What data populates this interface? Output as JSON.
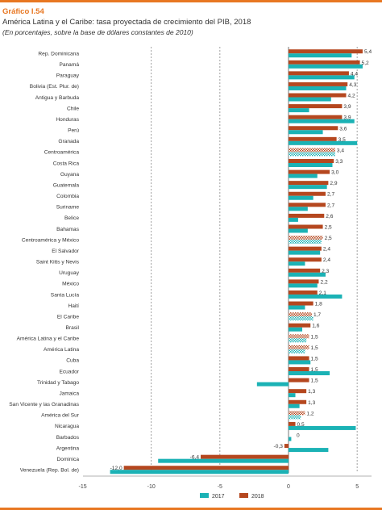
{
  "header": {
    "graph_number": "Gráfico I.54",
    "title": "América Latina y el Caribe: tasa proyectada de crecimiento del PIB, 2018",
    "subtitle": "(En porcentajes, sobre la base de dólares constantes de 2010)"
  },
  "colors": {
    "series_2017": "#1bb2b5",
    "series_2018": "#b5471f",
    "accent": "#e87722",
    "grid": "#888888"
  },
  "chart_data": {
    "type": "bar",
    "orientation": "horizontal",
    "xlim": [
      -15,
      6
    ],
    "xticks": [
      -15,
      -10,
      -5,
      0,
      5
    ],
    "grid": "dashed vertical lines at -10, -5 and 5",
    "legend_position": "bottom-center",
    "categories": [
      "Rep. Dominicana",
      "Panamá",
      "Paraguay",
      "Bolivia (Est. Plur. de)",
      "Antigua y Barbuda",
      "Chile",
      "Honduras",
      "Perú",
      "Granada",
      "Centroamérica",
      "Costa Rica",
      "Guyana",
      "Guatemala",
      "Colombia",
      "Suriname",
      "Belice",
      "Bahamas",
      "Centroamérica y México",
      "El Salvador",
      "Saint Kitts y Nevis",
      "Uruguay",
      "México",
      "Santa Lucía",
      "Haití",
      "El Caribe",
      "Brasil",
      "América Latina y el Caribe",
      "América Latina",
      "Cuba",
      "Ecuador",
      "Trinidad y Tabago",
      "Jamaica",
      "San Vicente y las Granadinas",
      "América del Sur",
      "Nicaragua",
      "Barbados",
      "Argentina",
      "Dominica",
      "Venezuela (Rep. Bol. de)"
    ],
    "aggregate_categories": [
      "Centroamérica",
      "Centroamérica y México",
      "El Caribe",
      "América Latina y el Caribe",
      "América Latina",
      "América del Sur"
    ],
    "series": [
      {
        "name": "2017",
        "values": [
          4.6,
          5.4,
          4.8,
          4.2,
          3.1,
          1.5,
          4.8,
          2.5,
          5.0,
          3.4,
          3.2,
          2.1,
          2.8,
          1.8,
          1.4,
          0.7,
          1.4,
          2.4,
          2.3,
          1.2,
          2.7,
          2.1,
          3.9,
          1.2,
          1.8,
          1.0,
          1.3,
          1.2,
          1.6,
          3.0,
          -2.3,
          0.5,
          0.8,
          0.9,
          4.9,
          0.2,
          2.9,
          -9.5,
          -13.0
        ]
      },
      {
        "name": "2018",
        "values": [
          5.4,
          5.2,
          4.4,
          4.3,
          4.2,
          3.9,
          3.9,
          3.6,
          3.5,
          3.4,
          3.3,
          3.0,
          2.9,
          2.7,
          2.7,
          2.6,
          2.5,
          2.5,
          2.4,
          2.4,
          2.3,
          2.2,
          2.1,
          1.8,
          1.7,
          1.6,
          1.5,
          1.5,
          1.5,
          1.5,
          1.5,
          1.3,
          1.3,
          1.2,
          0.5,
          0,
          -0.3,
          -6.4,
          -12.0
        ]
      }
    ],
    "data_labels": [
      "5,4",
      "5,2",
      "4,4",
      "4,3",
      "4,2",
      "3,9",
      "3,9",
      "3,6",
      "3,5",
      "3,4",
      "3,3",
      "3,0",
      "2,9",
      "2,7",
      "2,7",
      "2,6",
      "2,5",
      "2,5",
      "2,4",
      "2,4",
      "2,3",
      "2,2",
      "2,1",
      "1,8",
      "1,7",
      "1,6",
      "1,5",
      "1,5",
      "1,5",
      "1,5",
      "1,5",
      "1,3",
      "1,3",
      "1,2",
      "0,5",
      "0",
      "-0,3",
      "-6,4",
      "-12,0"
    ]
  }
}
